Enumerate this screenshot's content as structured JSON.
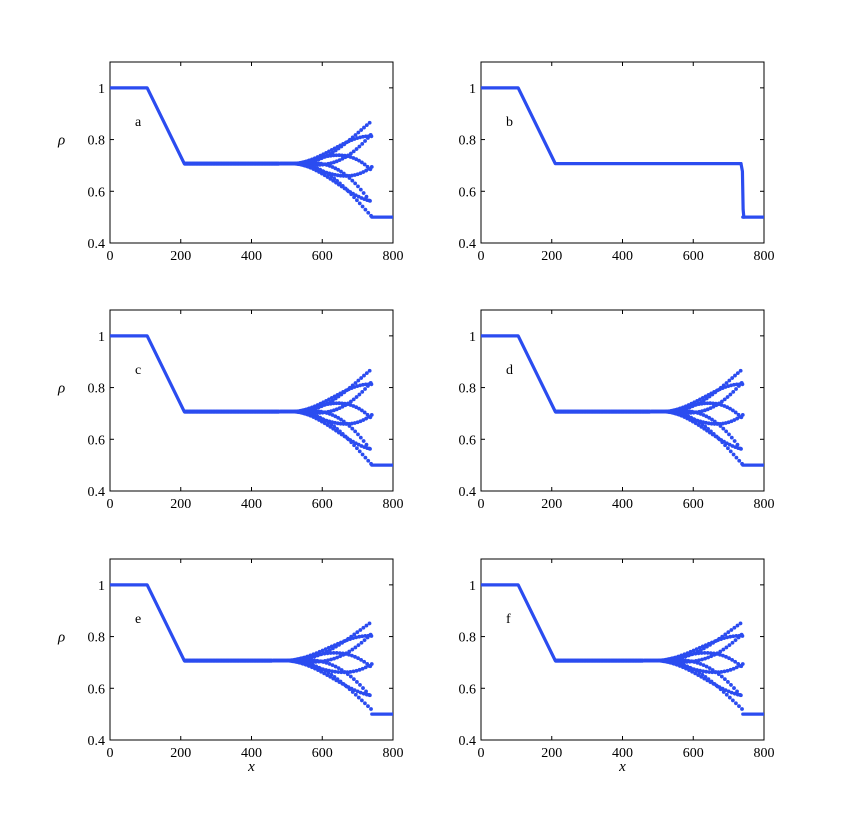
{
  "chart_data": [
    {
      "panel": "a",
      "type": "scatter",
      "xlabel": "",
      "ylabel": "ρ",
      "xlim": [
        0,
        800
      ],
      "ylim": [
        0.4,
        1.1
      ],
      "xticks": [
        "0",
        "200",
        "400",
        "600",
        "800"
      ],
      "yticks": [
        "0.4",
        "0.6",
        "0.8",
        "1"
      ],
      "plateau": 0.707,
      "front_x": 740,
      "left_value": 1.0,
      "right_value": 0.5,
      "oscillation_start_x": 520,
      "oscillation_max_amplitude": 0.185
    },
    {
      "panel": "b",
      "type": "line",
      "xlabel": "",
      "ylabel": "",
      "xlim": [
        0,
        800
      ],
      "ylim": [
        0.4,
        1.1
      ],
      "xticks": [
        "0",
        "200",
        "400",
        "600",
        "800"
      ],
      "yticks": [
        "0.4",
        "0.6",
        "0.8",
        "1"
      ],
      "plateau": 0.707,
      "front_x": 740,
      "left_value": 1.0,
      "right_value": 0.5,
      "oscillation_start_x": null,
      "oscillation_max_amplitude": 0
    },
    {
      "panel": "c",
      "type": "scatter",
      "xlabel": "",
      "ylabel": "ρ",
      "xlim": [
        0,
        800
      ],
      "ylim": [
        0.4,
        1.1
      ],
      "xticks": [
        "0",
        "200",
        "400",
        "600",
        "800"
      ],
      "yticks": [
        "0.4",
        "0.6",
        "0.8",
        "1"
      ],
      "plateau": 0.707,
      "front_x": 740,
      "left_value": 1.0,
      "right_value": 0.5,
      "oscillation_start_x": 520,
      "oscillation_max_amplitude": 0.185
    },
    {
      "panel": "d",
      "type": "scatter",
      "xlabel": "",
      "ylabel": "",
      "xlim": [
        0,
        800
      ],
      "ylim": [
        0.4,
        1.1
      ],
      "xticks": [
        "0",
        "200",
        "400",
        "600",
        "800"
      ],
      "yticks": [
        "0.4",
        "0.6",
        "0.8",
        "1"
      ],
      "plateau": 0.707,
      "front_x": 740,
      "left_value": 1.0,
      "right_value": 0.5,
      "oscillation_start_x": 520,
      "oscillation_max_amplitude": 0.185
    },
    {
      "panel": "e",
      "type": "scatter",
      "xlabel": "x",
      "ylabel": "ρ",
      "xlim": [
        0,
        800
      ],
      "ylim": [
        0.4,
        1.1
      ],
      "xticks": [
        "0",
        "200",
        "400",
        "600",
        "800"
      ],
      "yticks": [
        "0.4",
        "0.6",
        "0.8",
        "1"
      ],
      "plateau": 0.707,
      "front_x": 740,
      "left_value": 1.0,
      "right_value": 0.5,
      "oscillation_start_x": 500,
      "oscillation_max_amplitude": 0.17
    },
    {
      "panel": "f",
      "type": "scatter",
      "xlabel": "x",
      "ylabel": "",
      "xlim": [
        0,
        800
      ],
      "ylim": [
        0.4,
        1.1
      ],
      "xticks": [
        "0",
        "200",
        "400",
        "600",
        "800"
      ],
      "yticks": [
        "0.4",
        "0.6",
        "0.8",
        "1"
      ],
      "plateau": 0.707,
      "front_x": 740,
      "left_value": 1.0,
      "right_value": 0.5,
      "oscillation_start_x": 500,
      "oscillation_max_amplitude": 0.17
    }
  ],
  "colors": {
    "series": "#2b4cf0",
    "axis": "#000000"
  }
}
